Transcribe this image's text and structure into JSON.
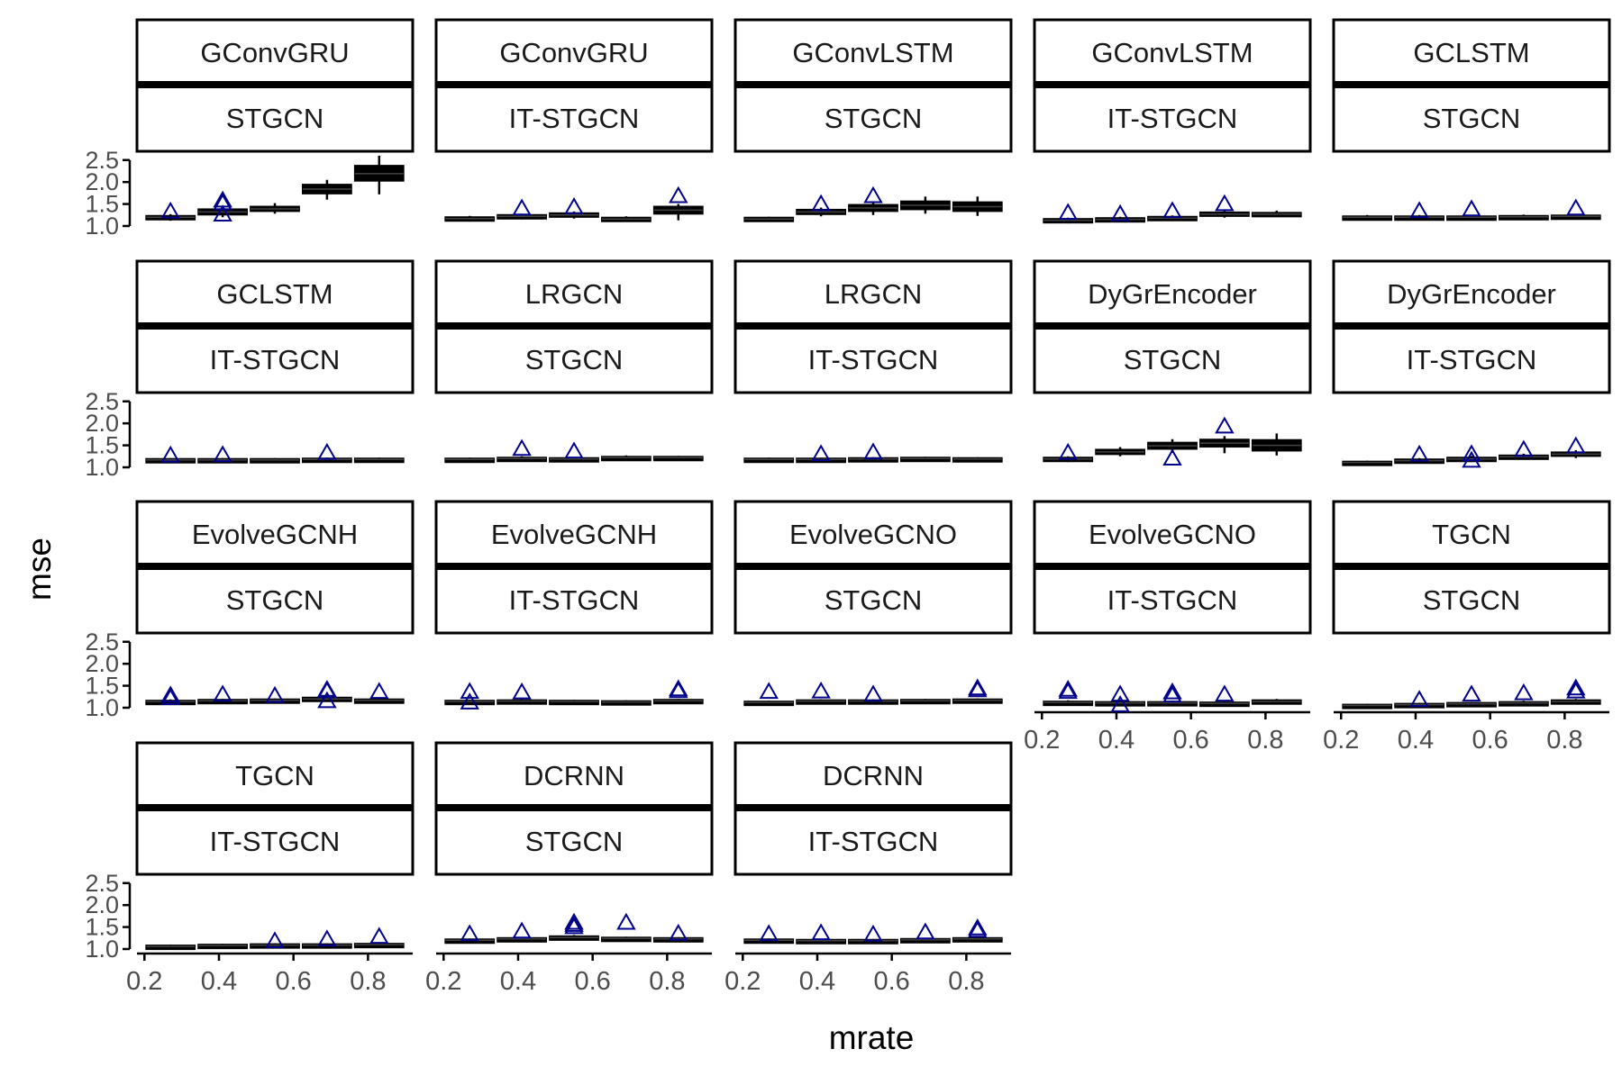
{
  "chart_data": {
    "type": "boxplot-faceted",
    "xlabel": "mrate",
    "ylabel": "mse",
    "xlim": [
      0.18,
      0.92
    ],
    "ylim": [
      1.0,
      2.7
    ],
    "x_ticks": [
      "0.2",
      "0.4",
      "0.6",
      "0.8"
    ],
    "y_ticks": [
      "1.0",
      "1.5",
      "2.0",
      "2.5"
    ],
    "x_tick_values": [
      0.2,
      0.4,
      0.6,
      0.8
    ],
    "y_tick_values": [
      1.0,
      1.5,
      2.0,
      2.5
    ],
    "x_positions": [
      0.27,
      0.41,
      0.55,
      0.69,
      0.83
    ],
    "colors": {
      "box": "#000000",
      "outlier": "#00008B",
      "strip_border": "#000000",
      "axis": "#000000",
      "tick_label": "#4d4d4d"
    },
    "panels": [
      {
        "model": "GConvGRU",
        "method": "STGCN",
        "boxes": [
          [
            1.17,
            1.2,
            1.23,
            1.12,
            1.27
          ],
          [
            1.26,
            1.32,
            1.38,
            1.2,
            1.45
          ],
          [
            1.34,
            1.39,
            1.44,
            1.28,
            1.52
          ],
          [
            1.74,
            1.84,
            1.94,
            1.6,
            2.05
          ],
          [
            2.03,
            2.19,
            2.37,
            1.72,
            2.6
          ]
        ],
        "outliers": [
          [
            0.27,
            1.33
          ],
          [
            0.41,
            1.52
          ],
          [
            0.41,
            1.58
          ],
          [
            0.41,
            1.26
          ]
        ]
      },
      {
        "model": "GConvGRU",
        "method": "IT-STGCN",
        "boxes": [
          [
            1.14,
            1.17,
            1.2,
            1.1,
            1.23
          ],
          [
            1.19,
            1.22,
            1.25,
            1.15,
            1.28
          ],
          [
            1.21,
            1.25,
            1.29,
            1.17,
            1.33
          ],
          [
            1.13,
            1.16,
            1.19,
            1.1,
            1.22
          ],
          [
            1.28,
            1.36,
            1.44,
            1.13,
            1.5
          ]
        ],
        "outliers": [
          [
            0.41,
            1.4
          ],
          [
            0.55,
            1.43
          ],
          [
            0.83,
            1.68
          ]
        ]
      },
      {
        "model": "GConvLSTM",
        "method": "STGCN",
        "boxes": [
          [
            1.13,
            1.16,
            1.19,
            1.1,
            1.21
          ],
          [
            1.27,
            1.32,
            1.37,
            1.22,
            1.42
          ],
          [
            1.34,
            1.41,
            1.48,
            1.25,
            1.55
          ],
          [
            1.38,
            1.47,
            1.56,
            1.28,
            1.67
          ],
          [
            1.34,
            1.44,
            1.54,
            1.23,
            1.67
          ]
        ],
        "outliers": [
          [
            0.41,
            1.5
          ],
          [
            0.55,
            1.68
          ]
        ]
      },
      {
        "model": "GConvLSTM",
        "method": "IT-STGCN",
        "boxes": [
          [
            1.1,
            1.13,
            1.16,
            1.06,
            1.19
          ],
          [
            1.12,
            1.15,
            1.18,
            1.09,
            1.21
          ],
          [
            1.15,
            1.18,
            1.21,
            1.11,
            1.24
          ],
          [
            1.23,
            1.27,
            1.31,
            1.19,
            1.36
          ],
          [
            1.24,
            1.27,
            1.3,
            1.21,
            1.35
          ]
        ],
        "outliers": [
          [
            0.27,
            1.3
          ],
          [
            0.41,
            1.27
          ],
          [
            0.55,
            1.34
          ],
          [
            0.69,
            1.5
          ]
        ]
      },
      {
        "model": "GCLSTM",
        "method": "STGCN",
        "boxes": [
          [
            1.18,
            1.2,
            1.22,
            1.15,
            1.25
          ],
          [
            1.18,
            1.2,
            1.22,
            1.15,
            1.25
          ],
          [
            1.18,
            1.2,
            1.22,
            1.15,
            1.25
          ],
          [
            1.19,
            1.21,
            1.23,
            1.16,
            1.26
          ],
          [
            1.2,
            1.22,
            1.24,
            1.17,
            1.27
          ]
        ],
        "outliers": [
          [
            0.41,
            1.34
          ],
          [
            0.55,
            1.38
          ],
          [
            0.83,
            1.4
          ]
        ]
      },
      {
        "model": "GCLSTM",
        "method": "IT-STGCN",
        "boxes": [
          [
            1.15,
            1.17,
            1.19,
            1.13,
            1.21
          ],
          [
            1.15,
            1.17,
            1.19,
            1.13,
            1.21
          ],
          [
            1.15,
            1.17,
            1.19,
            1.13,
            1.21
          ],
          [
            1.16,
            1.18,
            1.2,
            1.14,
            1.22
          ],
          [
            1.16,
            1.18,
            1.2,
            1.14,
            1.22
          ]
        ],
        "outliers": [
          [
            0.27,
            1.27
          ],
          [
            0.41,
            1.28
          ],
          [
            0.69,
            1.33
          ]
        ]
      },
      {
        "model": "LRGCN",
        "method": "STGCN",
        "boxes": [
          [
            1.16,
            1.18,
            1.2,
            1.14,
            1.22
          ],
          [
            1.18,
            1.2,
            1.22,
            1.16,
            1.25
          ],
          [
            1.17,
            1.19,
            1.21,
            1.15,
            1.23
          ],
          [
            1.2,
            1.22,
            1.24,
            1.18,
            1.27
          ],
          [
            1.2,
            1.22,
            1.24,
            1.18,
            1.26
          ]
        ],
        "outliers": [
          [
            0.41,
            1.42
          ],
          [
            0.55,
            1.36
          ]
        ]
      },
      {
        "model": "LRGCN",
        "method": "IT-STGCN",
        "boxes": [
          [
            1.16,
            1.18,
            1.2,
            1.14,
            1.22
          ],
          [
            1.16,
            1.18,
            1.2,
            1.14,
            1.22
          ],
          [
            1.17,
            1.19,
            1.21,
            1.15,
            1.23
          ],
          [
            1.18,
            1.2,
            1.22,
            1.16,
            1.24
          ],
          [
            1.17,
            1.19,
            1.21,
            1.15,
            1.23
          ]
        ],
        "outliers": [
          [
            0.41,
            1.3
          ],
          [
            0.55,
            1.34
          ]
        ]
      },
      {
        "model": "DyGrEncoder",
        "method": "STGCN",
        "boxes": [
          [
            1.16,
            1.19,
            1.22,
            1.12,
            1.25
          ],
          [
            1.3,
            1.35,
            1.4,
            1.25,
            1.46
          ],
          [
            1.42,
            1.49,
            1.56,
            1.33,
            1.64
          ],
          [
            1.47,
            1.55,
            1.63,
            1.32,
            1.71
          ],
          [
            1.38,
            1.5,
            1.62,
            1.27,
            1.77
          ]
        ],
        "outliers": [
          [
            0.27,
            1.33
          ],
          [
            0.55,
            1.2
          ],
          [
            0.69,
            1.93
          ]
        ]
      },
      {
        "model": "DyGrEncoder",
        "method": "IT-STGCN",
        "boxes": [
          [
            1.09,
            1.11,
            1.13,
            1.07,
            1.15
          ],
          [
            1.12,
            1.15,
            1.18,
            1.09,
            1.21
          ],
          [
            1.16,
            1.19,
            1.22,
            1.12,
            1.26
          ],
          [
            1.21,
            1.24,
            1.27,
            1.17,
            1.31
          ],
          [
            1.26,
            1.3,
            1.34,
            1.21,
            1.39
          ]
        ],
        "outliers": [
          [
            0.41,
            1.29
          ],
          [
            0.55,
            1.15
          ],
          [
            0.55,
            1.3
          ],
          [
            0.69,
            1.4
          ],
          [
            0.83,
            1.48
          ]
        ]
      },
      {
        "model": "EvolveGCNH",
        "method": "STGCN",
        "boxes": [
          [
            1.12,
            1.14,
            1.16,
            1.1,
            1.19
          ],
          [
            1.14,
            1.16,
            1.18,
            1.12,
            1.2
          ],
          [
            1.15,
            1.17,
            1.19,
            1.13,
            1.21
          ],
          [
            1.17,
            1.2,
            1.23,
            1.14,
            1.26
          ],
          [
            1.15,
            1.17,
            1.19,
            1.13,
            1.21
          ]
        ],
        "outliers": [
          [
            0.27,
            1.22
          ],
          [
            0.27,
            1.28
          ],
          [
            0.41,
            1.3
          ],
          [
            0.55,
            1.27
          ],
          [
            0.69,
            1.15
          ],
          [
            0.69,
            1.38
          ],
          [
            0.69,
            1.41
          ],
          [
            0.83,
            1.36
          ]
        ]
      },
      {
        "model": "EvolveGCNH",
        "method": "IT-STGCN",
        "boxes": [
          [
            1.12,
            1.14,
            1.16,
            1.1,
            1.18
          ],
          [
            1.13,
            1.15,
            1.17,
            1.11,
            1.19
          ],
          [
            1.12,
            1.14,
            1.16,
            1.1,
            1.18
          ],
          [
            1.11,
            1.13,
            1.15,
            1.09,
            1.17
          ],
          [
            1.14,
            1.16,
            1.18,
            1.12,
            1.2
          ]
        ],
        "outliers": [
          [
            0.27,
            1.12
          ],
          [
            0.27,
            1.36
          ],
          [
            0.41,
            1.35
          ],
          [
            0.83,
            1.38
          ],
          [
            0.83,
            1.42
          ]
        ]
      },
      {
        "model": "EvolveGCNO",
        "method": "STGCN",
        "boxes": [
          [
            1.1,
            1.12,
            1.14,
            1.08,
            1.16
          ],
          [
            1.13,
            1.15,
            1.17,
            1.11,
            1.19
          ],
          [
            1.13,
            1.15,
            1.17,
            1.11,
            1.19
          ],
          [
            1.14,
            1.16,
            1.18,
            1.12,
            1.2
          ],
          [
            1.15,
            1.17,
            1.19,
            1.13,
            1.21
          ]
        ],
        "outliers": [
          [
            0.27,
            1.36
          ],
          [
            0.41,
            1.37
          ],
          [
            0.55,
            1.3
          ],
          [
            0.83,
            1.4
          ],
          [
            0.83,
            1.44
          ]
        ]
      },
      {
        "model": "EvolveGCNO",
        "method": "IT-STGCN",
        "boxes": [
          [
            1.1,
            1.12,
            1.14,
            1.08,
            1.17
          ],
          [
            1.09,
            1.11,
            1.13,
            1.07,
            1.16
          ],
          [
            1.09,
            1.11,
            1.13,
            1.07,
            1.16
          ],
          [
            1.08,
            1.1,
            1.12,
            1.06,
            1.15
          ],
          [
            1.11,
            1.14,
            1.17,
            1.08,
            1.2
          ]
        ],
        "outliers": [
          [
            0.27,
            1.36
          ],
          [
            0.27,
            1.41
          ],
          [
            0.41,
            1.06
          ],
          [
            0.41,
            1.3
          ],
          [
            0.55,
            1.28
          ],
          [
            0.55,
            1.35
          ],
          [
            0.69,
            1.3
          ]
        ]
      },
      {
        "model": "TGCN",
        "method": "STGCN",
        "boxes": [
          [
            1.03,
            1.05,
            1.07,
            1.01,
            1.09
          ],
          [
            1.05,
            1.07,
            1.09,
            1.03,
            1.11
          ],
          [
            1.07,
            1.09,
            1.11,
            1.05,
            1.13
          ],
          [
            1.09,
            1.11,
            1.13,
            1.07,
            1.16
          ],
          [
            1.11,
            1.14,
            1.17,
            1.08,
            1.2
          ]
        ],
        "outliers": [
          [
            0.41,
            1.18
          ],
          [
            0.55,
            1.3
          ],
          [
            0.69,
            1.33
          ],
          [
            0.83,
            1.37
          ],
          [
            0.83,
            1.44
          ]
        ]
      },
      {
        "model": "TGCN",
        "method": "IT-STGCN",
        "boxes": [
          [
            1.04,
            1.06,
            1.08,
            1.02,
            1.1
          ],
          [
            1.06,
            1.08,
            1.1,
            1.04,
            1.12
          ],
          [
            1.07,
            1.09,
            1.11,
            1.05,
            1.13
          ],
          [
            1.07,
            1.09,
            1.11,
            1.05,
            1.13
          ],
          [
            1.08,
            1.1,
            1.12,
            1.06,
            1.14
          ]
        ],
        "outliers": [
          [
            0.55,
            1.18
          ],
          [
            0.69,
            1.22
          ],
          [
            0.83,
            1.28
          ]
        ]
      },
      {
        "model": "DCRNN",
        "method": "STGCN",
        "boxes": [
          [
            1.18,
            1.2,
            1.22,
            1.16,
            1.24
          ],
          [
            1.21,
            1.23,
            1.25,
            1.19,
            1.27
          ],
          [
            1.23,
            1.26,
            1.29,
            1.2,
            1.32
          ],
          [
            1.22,
            1.24,
            1.26,
            1.2,
            1.28
          ],
          [
            1.21,
            1.23,
            1.25,
            1.19,
            1.27
          ]
        ],
        "outliers": [
          [
            0.27,
            1.34
          ],
          [
            0.41,
            1.4
          ],
          [
            0.55,
            1.5
          ],
          [
            0.55,
            1.55
          ],
          [
            0.55,
            1.6
          ],
          [
            0.69,
            1.6
          ],
          [
            0.83,
            1.35
          ]
        ]
      },
      {
        "model": "DCRNN",
        "method": "IT-STGCN",
        "boxes": [
          [
            1.18,
            1.2,
            1.22,
            1.16,
            1.24
          ],
          [
            1.17,
            1.19,
            1.21,
            1.15,
            1.23
          ],
          [
            1.17,
            1.19,
            1.21,
            1.15,
            1.23
          ],
          [
            1.19,
            1.21,
            1.23,
            1.17,
            1.25
          ],
          [
            1.21,
            1.23,
            1.25,
            1.19,
            1.27
          ]
        ],
        "outliers": [
          [
            0.27,
            1.34
          ],
          [
            0.41,
            1.36
          ],
          [
            0.55,
            1.33
          ],
          [
            0.69,
            1.38
          ],
          [
            0.83,
            1.42
          ],
          [
            0.83,
            1.47
          ]
        ]
      }
    ]
  }
}
